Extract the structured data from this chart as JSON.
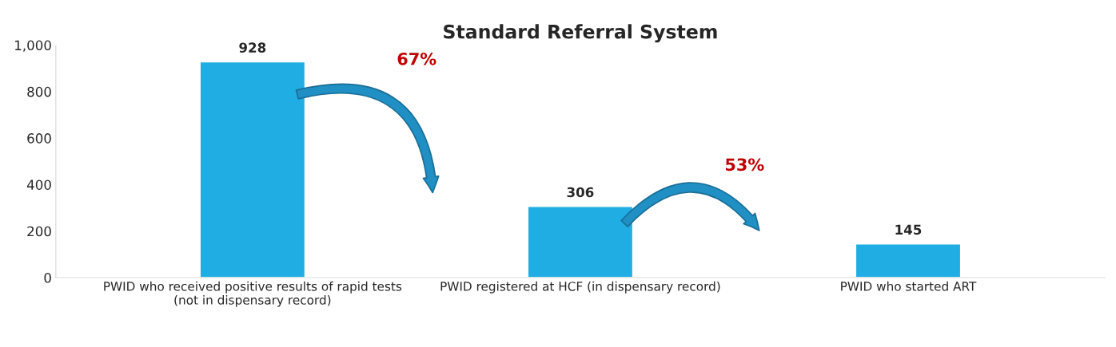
{
  "chart_data": {
    "type": "bar",
    "title": "Standard Referral System",
    "categories": [
      "PWID who received positive results of rapid tests\n(not in dispensary record)",
      "PWID registered at HCF (in dispensary record)",
      "PWID who started ART"
    ],
    "values": [
      928,
      306,
      145
    ],
    "color": "#1fade3",
    "ylim": [
      0,
      1000
    ],
    "yticks": [
      0,
      200,
      400,
      600,
      800,
      {
        "value": 1000,
        "label": "1,000"
      }
    ],
    "data_labels": true,
    "grid": false,
    "annotations": [
      "67%",
      "53%"
    ]
  }
}
